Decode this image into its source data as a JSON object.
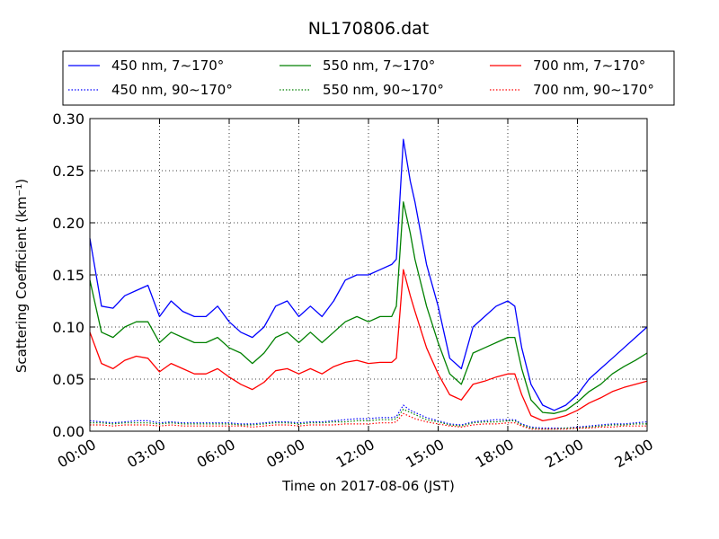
{
  "chart_data": {
    "type": "line",
    "title": "NL170806.dat",
    "xlabel": "Time on 2017-08-06 (JST)",
    "ylabel": "Scattering Coefficient (km⁻¹)",
    "xlim": [
      0,
      24
    ],
    "ylim": [
      0.0,
      0.3
    ],
    "grid": true,
    "legend_position": "top, above plot, 3 columns",
    "x_tick_labels": [
      "00:00",
      "03:00",
      "06:00",
      "09:00",
      "12:00",
      "15:00",
      "18:00",
      "21:00",
      "24:00"
    ],
    "y_tick_labels": [
      "0.00",
      "0.05",
      "0.10",
      "0.15",
      "0.20",
      "0.25",
      "0.30"
    ],
    "x_hours": [
      0,
      0.5,
      1,
      1.5,
      2,
      2.5,
      3,
      3.5,
      4,
      4.5,
      5,
      5.5,
      6,
      6.5,
      7,
      7.5,
      8,
      8.5,
      9,
      9.5,
      10,
      10.5,
      11,
      11.5,
      12,
      12.5,
      13,
      13.2,
      13.5,
      13.8,
      14,
      14.5,
      15,
      15.5,
      16,
      16.5,
      17,
      17.5,
      18,
      18.3,
      18.6,
      19,
      19.5,
      20,
      20.5,
      21,
      21.5,
      22,
      22.5,
      23,
      23.5,
      24
    ],
    "series": [
      {
        "name": "450 nm, 7∼170°",
        "color": "#0000ff",
        "style": "solid",
        "values": [
          0.185,
          0.12,
          0.118,
          0.13,
          0.135,
          0.14,
          0.11,
          0.125,
          0.115,
          0.11,
          0.11,
          0.12,
          0.105,
          0.095,
          0.09,
          0.1,
          0.12,
          0.125,
          0.11,
          0.12,
          0.11,
          0.125,
          0.145,
          0.15,
          0.15,
          0.155,
          0.16,
          0.165,
          0.28,
          0.24,
          0.22,
          0.16,
          0.12,
          0.07,
          0.06,
          0.1,
          0.11,
          0.12,
          0.125,
          0.12,
          0.08,
          0.045,
          0.025,
          0.02,
          0.025,
          0.035,
          0.05,
          0.06,
          0.07,
          0.08,
          0.09,
          0.1
        ]
      },
      {
        "name": "550 nm, 7∼170°",
        "color": "#008000",
        "style": "solid",
        "values": [
          0.145,
          0.095,
          0.09,
          0.1,
          0.105,
          0.105,
          0.085,
          0.095,
          0.09,
          0.085,
          0.085,
          0.09,
          0.08,
          0.075,
          0.065,
          0.075,
          0.09,
          0.095,
          0.085,
          0.095,
          0.085,
          0.095,
          0.105,
          0.11,
          0.105,
          0.11,
          0.11,
          0.12,
          0.22,
          0.19,
          0.165,
          0.12,
          0.085,
          0.055,
          0.045,
          0.075,
          0.08,
          0.085,
          0.09,
          0.09,
          0.06,
          0.03,
          0.018,
          0.017,
          0.02,
          0.028,
          0.038,
          0.045,
          0.055,
          0.062,
          0.068,
          0.075
        ]
      },
      {
        "name": "700 nm, 7∼170°",
        "color": "#ff0000",
        "style": "solid",
        "values": [
          0.095,
          0.065,
          0.06,
          0.068,
          0.072,
          0.07,
          0.057,
          0.065,
          0.06,
          0.055,
          0.055,
          0.06,
          0.052,
          0.045,
          0.04,
          0.047,
          0.058,
          0.06,
          0.055,
          0.06,
          0.055,
          0.062,
          0.066,
          0.068,
          0.065,
          0.066,
          0.066,
          0.07,
          0.155,
          0.13,
          0.115,
          0.08,
          0.055,
          0.035,
          0.03,
          0.045,
          0.048,
          0.052,
          0.055,
          0.055,
          0.035,
          0.015,
          0.01,
          0.012,
          0.015,
          0.02,
          0.027,
          0.032,
          0.038,
          0.042,
          0.045,
          0.048
        ]
      },
      {
        "name": "450 nm, 90∼170°",
        "color": "#0000ff",
        "style": "dotted",
        "values": [
          0.01,
          0.009,
          0.008,
          0.009,
          0.01,
          0.01,
          0.008,
          0.009,
          0.008,
          0.008,
          0.008,
          0.008,
          0.008,
          0.007,
          0.007,
          0.008,
          0.009,
          0.009,
          0.008,
          0.009,
          0.009,
          0.01,
          0.011,
          0.012,
          0.012,
          0.013,
          0.013,
          0.014,
          0.025,
          0.02,
          0.018,
          0.013,
          0.01,
          0.007,
          0.006,
          0.009,
          0.01,
          0.011,
          0.011,
          0.011,
          0.007,
          0.004,
          0.003,
          0.003,
          0.003,
          0.004,
          0.005,
          0.006,
          0.007,
          0.007,
          0.008,
          0.009
        ]
      },
      {
        "name": "550 nm, 90∼170°",
        "color": "#008000",
        "style": "dotted",
        "values": [
          0.008,
          0.008,
          0.007,
          0.008,
          0.008,
          0.008,
          0.007,
          0.008,
          0.007,
          0.007,
          0.007,
          0.007,
          0.007,
          0.006,
          0.006,
          0.007,
          0.008,
          0.008,
          0.007,
          0.008,
          0.008,
          0.009,
          0.009,
          0.01,
          0.01,
          0.011,
          0.011,
          0.012,
          0.021,
          0.018,
          0.016,
          0.011,
          0.009,
          0.006,
          0.005,
          0.008,
          0.009,
          0.009,
          0.01,
          0.01,
          0.006,
          0.003,
          0.002,
          0.002,
          0.003,
          0.003,
          0.004,
          0.005,
          0.006,
          0.006,
          0.007,
          0.007
        ]
      },
      {
        "name": "700 nm, 90∼170°",
        "color": "#ff0000",
        "style": "dotted",
        "values": [
          0.006,
          0.006,
          0.005,
          0.006,
          0.006,
          0.006,
          0.005,
          0.006,
          0.005,
          0.005,
          0.005,
          0.005,
          0.005,
          0.005,
          0.004,
          0.005,
          0.006,
          0.006,
          0.005,
          0.006,
          0.006,
          0.006,
          0.007,
          0.007,
          0.007,
          0.008,
          0.008,
          0.009,
          0.017,
          0.014,
          0.012,
          0.009,
          0.007,
          0.005,
          0.004,
          0.006,
          0.007,
          0.007,
          0.008,
          0.008,
          0.005,
          0.002,
          0.002,
          0.002,
          0.002,
          0.003,
          0.003,
          0.004,
          0.004,
          0.005,
          0.005,
          0.005
        ]
      }
    ]
  }
}
